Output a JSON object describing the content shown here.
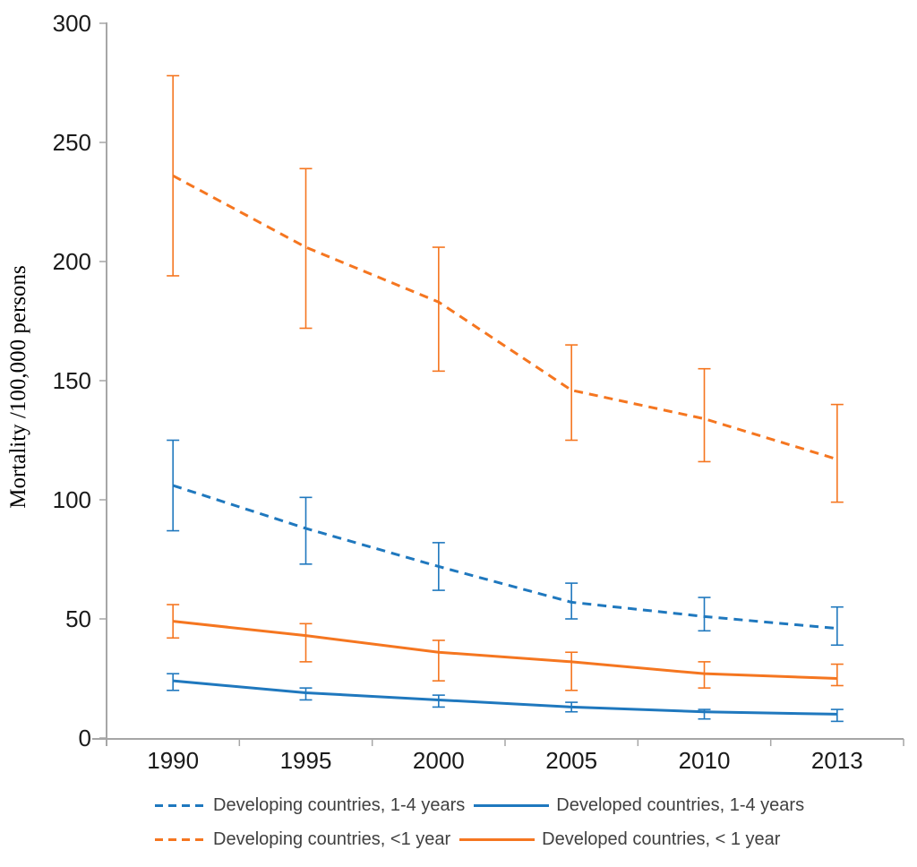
{
  "chart_data": {
    "type": "line",
    "title": "",
    "xlabel": "",
    "ylabel": "Mortality /100,000 persons",
    "ylim": [
      0,
      300
    ],
    "yticks": [
      0,
      50,
      100,
      150,
      200,
      250,
      300
    ],
    "categories": [
      "1990",
      "1995",
      "2000",
      "2005",
      "2010",
      "2013"
    ],
    "grid": false,
    "legend_position": "bottom",
    "axis_color": "#A6A6A6",
    "tick_label_color": "#1a1a1a",
    "legend_text_color": "#404040",
    "error_bars": true,
    "series": [
      {
        "name": "Developing countries, 1-4 years",
        "color": "#1F78BE",
        "style": "dashed",
        "values": [
          106,
          88,
          72,
          57,
          51,
          46
        ],
        "err_low": [
          87,
          73,
          62,
          50,
          45,
          39
        ],
        "err_high": [
          125,
          101,
          82,
          65,
          59,
          55
        ]
      },
      {
        "name": "Developed countries, 1-4 years",
        "color": "#1F78BE",
        "style": "solid",
        "values": [
          24,
          19,
          16,
          13,
          11,
          10
        ],
        "err_low": [
          20,
          16,
          13,
          11,
          8,
          7
        ],
        "err_high": [
          27,
          21,
          18,
          15,
          12,
          12
        ]
      },
      {
        "name": "Developing countries, <1 year",
        "color": "#F57620",
        "style": "dashed",
        "values": [
          236,
          206,
          183,
          146,
          134,
          117
        ],
        "err_low": [
          194,
          172,
          154,
          125,
          116,
          99
        ],
        "err_high": [
          278,
          239,
          206,
          165,
          155,
          140
        ]
      },
      {
        "name": "Developed countries, < 1 year",
        "color": "#F57620",
        "style": "solid",
        "values": [
          49,
          43,
          36,
          32,
          27,
          25
        ],
        "err_low": [
          42,
          32,
          24,
          20,
          21,
          22
        ],
        "err_high": [
          56,
          48,
          41,
          36,
          32,
          31
        ]
      }
    ]
  }
}
